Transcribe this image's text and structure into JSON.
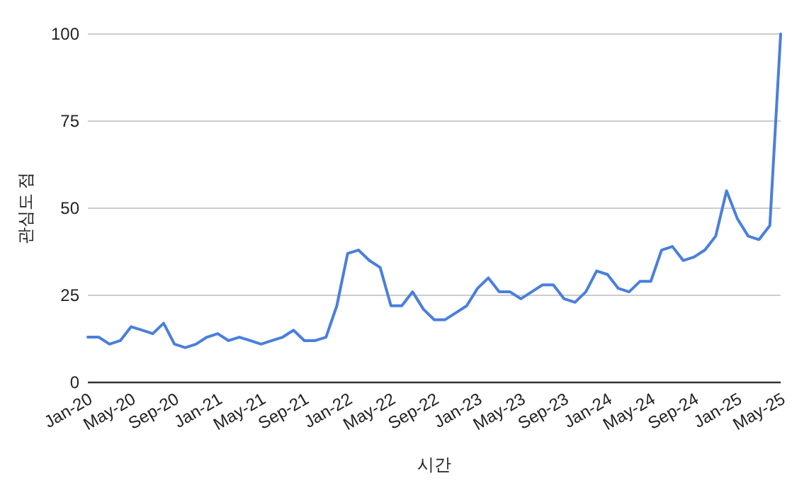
{
  "chart_data": {
    "type": "line",
    "xlabel": "시간",
    "ylabel": "관심도 점",
    "x": [
      "2020-01",
      "2020-02",
      "2020-03",
      "2020-04",
      "2020-05",
      "2020-06",
      "2020-07",
      "2020-08",
      "2020-09",
      "2020-10",
      "2020-11",
      "2020-12",
      "2021-01",
      "2021-02",
      "2021-03",
      "2021-04",
      "2021-05",
      "2021-06",
      "2021-07",
      "2021-08",
      "2021-09",
      "2021-10",
      "2021-11",
      "2021-12",
      "2022-01",
      "2022-02",
      "2022-03",
      "2022-04",
      "2022-05",
      "2022-06",
      "2022-07",
      "2022-08",
      "2022-09",
      "2022-10",
      "2022-11",
      "2022-12",
      "2023-01",
      "2023-02",
      "2023-03",
      "2023-04",
      "2023-05",
      "2023-06",
      "2023-07",
      "2023-08",
      "2023-09",
      "2023-10",
      "2023-11",
      "2023-12",
      "2024-01",
      "2024-02",
      "2024-03",
      "2024-04",
      "2024-05",
      "2024-06",
      "2024-07",
      "2024-08",
      "2024-09",
      "2024-10",
      "2024-11",
      "2024-12",
      "2025-01",
      "2025-02",
      "2025-03",
      "2025-04",
      "2025-05"
    ],
    "series": [
      {
        "color": "#4a7fdc",
        "values": [
          13,
          13,
          11,
          12,
          16,
          15,
          14,
          17,
          11,
          10,
          11,
          13,
          14,
          12,
          13,
          12,
          11,
          12,
          13,
          15,
          12,
          12,
          13,
          22,
          37,
          38,
          35,
          33,
          22,
          22,
          26,
          21,
          18,
          18,
          20,
          22,
          27,
          30,
          26,
          26,
          24,
          26,
          28,
          28,
          24,
          23,
          26,
          32,
          31,
          27,
          26,
          29,
          29,
          38,
          39,
          35,
          36,
          38,
          42,
          55,
          47,
          42,
          41,
          45,
          100
        ]
      }
    ],
    "xlim": [
      "2020-01",
      "2025-05"
    ],
    "xticks": [
      {
        "value": "2020-01",
        "label": "Jan-20"
      },
      {
        "value": "2020-05",
        "label": "May-20"
      },
      {
        "value": "2020-09",
        "label": "Sep-20"
      },
      {
        "value": "2021-01",
        "label": "Jan-21"
      },
      {
        "value": "2021-05",
        "label": "May-21"
      },
      {
        "value": "2021-09",
        "label": "Sep-21"
      },
      {
        "value": "2022-01",
        "label": "Jan-22"
      },
      {
        "value": "2022-05",
        "label": "May-22"
      },
      {
        "value": "2022-09",
        "label": "Sep-22"
      },
      {
        "value": "2023-01",
        "label": "Jan-23"
      },
      {
        "value": "2023-05",
        "label": "May-23"
      },
      {
        "value": "2023-09",
        "label": "Sep-23"
      },
      {
        "value": "2024-01",
        "label": "Jan-24"
      },
      {
        "value": "2024-05",
        "label": "May-24"
      },
      {
        "value": "2024-09",
        "label": "Sep-24"
      },
      {
        "value": "2025-01",
        "label": "Jan-25"
      },
      {
        "value": "2025-05",
        "label": "May-25"
      }
    ],
    "ylim": [
      0,
      100
    ],
    "yticks": [
      0,
      25,
      50,
      75,
      100
    ],
    "grid": "y",
    "marker": "none",
    "line_style": "solid"
  }
}
